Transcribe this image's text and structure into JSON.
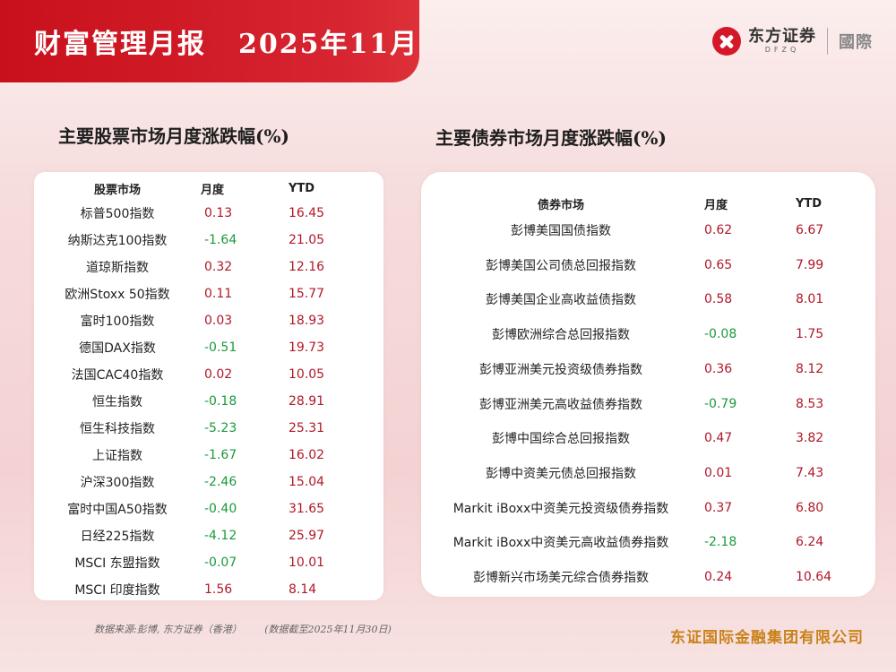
{
  "header": {
    "title": "财富管理月报",
    "date": "2025年11月"
  },
  "logo": {
    "name_cn": "东方证券",
    "name_en": "DFZQ",
    "suffix": "國際",
    "brand_color": "#d4182a"
  },
  "stock": {
    "title": "主要股票市场月度涨跌幅(%)",
    "columns": [
      "股票市场",
      "月度",
      "YTD"
    ],
    "rows": [
      {
        "name": "标普500指数",
        "month": "0.13",
        "ytd": "16.45"
      },
      {
        "name": "纳斯达克100指数",
        "month": "-1.64",
        "ytd": "21.05"
      },
      {
        "name": "道琼斯指数",
        "month": "0.32",
        "ytd": "12.16"
      },
      {
        "name": "欧洲Stoxx 50指数",
        "month": "0.11",
        "ytd": "15.77"
      },
      {
        "name": "富时100指数",
        "month": "0.03",
        "ytd": "18.93"
      },
      {
        "name": "德国DAX指数",
        "month": "-0.51",
        "ytd": "19.73"
      },
      {
        "name": "法国CAC40指数",
        "month": "0.02",
        "ytd": "10.05"
      },
      {
        "name": "恒生指数",
        "month": "-0.18",
        "ytd": "28.91"
      },
      {
        "name": "恒生科技指数",
        "month": "-5.23",
        "ytd": "25.31"
      },
      {
        "name": "上证指数",
        "month": "-1.67",
        "ytd": "16.02"
      },
      {
        "name": "沪深300指数",
        "month": "-2.46",
        "ytd": "15.04"
      },
      {
        "name": "富时中国A50指数",
        "month": "-0.40",
        "ytd": "31.65"
      },
      {
        "name": "日经225指数",
        "month": "-4.12",
        "ytd": "25.97"
      },
      {
        "name": "MSCI 东盟指数",
        "month": "-0.07",
        "ytd": "10.01"
      },
      {
        "name": "MSCI 印度指数",
        "month": "1.56",
        "ytd": "8.14"
      }
    ]
  },
  "bond": {
    "title": "主要债券市场月度涨跌幅(%)",
    "columns": [
      "债券市场",
      "月度",
      "YTD"
    ],
    "rows": [
      {
        "name": "彭博美国国债指数",
        "month": "0.62",
        "ytd": "6.67"
      },
      {
        "name": "彭博美国公司债总回报指数",
        "month": "0.65",
        "ytd": "7.99"
      },
      {
        "name": "彭博美国企业高收益债指数",
        "month": "0.58",
        "ytd": "8.01"
      },
      {
        "name": "彭博欧洲综合总回报指数",
        "month": "-0.08",
        "ytd": "1.75"
      },
      {
        "name": "彭博亚洲美元投资级债券指数",
        "month": "0.36",
        "ytd": "8.12"
      },
      {
        "name": "彭博亚洲美元高收益债券指数",
        "month": "-0.79",
        "ytd": "8.53"
      },
      {
        "name": "彭博中国综合总回报指数",
        "month": "0.47",
        "ytd": "3.82"
      },
      {
        "name": "彭博中资美元债总回报指数",
        "month": "0.01",
        "ytd": "7.43"
      },
      {
        "name": "Markit iBoxx中资美元投资级债券指数",
        "month": "0.37",
        "ytd": "6.80"
      },
      {
        "name": "Markit iBoxx中资美元高收益债券指数",
        "month": "-2.18",
        "ytd": "6.24"
      },
      {
        "name": "彭博新兴市场美元综合债券指数",
        "month": "0.24",
        "ytd": "10.64"
      }
    ]
  },
  "footer": {
    "source": "数据来源:彭博, 东方证券（香港）",
    "as_of": "(数据截至2025年11月30日)",
    "company": "东证国际金融集团有限公司"
  },
  "colors": {
    "positive": "#b01828",
    "negative": "#1b9a3c",
    "accent": "#c8101c",
    "company_text": "#c9821a"
  }
}
